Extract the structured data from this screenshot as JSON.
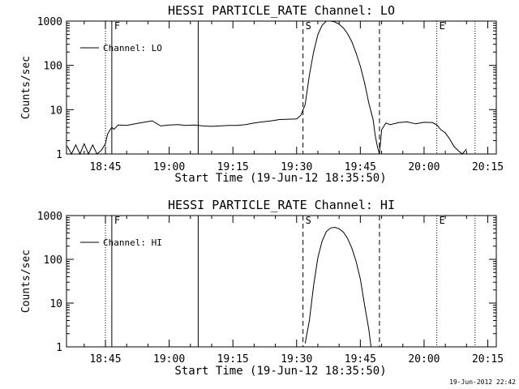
{
  "chart_data": [
    {
      "type": "line",
      "title": "HESSI PARTICLE_RATE Channel: LO",
      "xlabel": "Start Time (19-Jun-12 18:35:50)",
      "ylabel": "Counts/sec",
      "yscale": "log",
      "ylim": [
        1,
        1000
      ],
      "xlim": [
        "18:35:50",
        "20:17:00"
      ],
      "grid": false,
      "legend": "top-left",
      "x_ticks": [
        "18:45",
        "19:00",
        "19:15",
        "19:30",
        "19:45",
        "20:00",
        "20:15"
      ],
      "y_ticks": [
        "1",
        "10",
        "100",
        "1000"
      ],
      "markers": [
        {
          "time": "18:45:00",
          "style": "dotted",
          "label": ""
        },
        {
          "time": "18:46:30",
          "style": "solid",
          "label": "F"
        },
        {
          "time": "19:06:50",
          "style": "solid",
          "label": ""
        },
        {
          "time": "19:31:30",
          "style": "dashed",
          "label": "S"
        },
        {
          "time": "19:49:30",
          "style": "dashed",
          "label": ""
        },
        {
          "time": "20:03:00",
          "style": "dotted",
          "label": "E"
        },
        {
          "time": "20:12:00",
          "style": "dotted",
          "label": ""
        }
      ],
      "series": [
        {
          "name": "Channel: LO",
          "x": [
            "18:36:00",
            "18:37:00",
            "18:38:00",
            "18:39:00",
            "18:40:00",
            "18:41:00",
            "18:42:00",
            "18:43:00",
            "18:44:00",
            "18:45:00",
            "18:45:30",
            "18:46:00",
            "18:46:30",
            "18:47:00",
            "18:48:00",
            "18:50:00",
            "18:52:00",
            "18:54:00",
            "18:56:00",
            "18:58:00",
            "19:00:00",
            "19:02:00",
            "19:04:00",
            "19:06:00",
            "19:08:00",
            "19:10:00",
            "19:12:00",
            "19:14:00",
            "19:16:00",
            "19:18:00",
            "19:20:00",
            "19:22:00",
            "19:24:00",
            "19:26:00",
            "19:28:00",
            "19:30:00",
            "19:31:00",
            "19:32:00",
            "19:33:00",
            "19:34:00",
            "19:35:00",
            "19:36:00",
            "19:37:00",
            "19:38:00",
            "19:39:00",
            "19:40:00",
            "19:41:00",
            "19:42:00",
            "19:43:00",
            "19:44:00",
            "19:45:00",
            "19:46:00",
            "19:47:00",
            "19:48:00",
            "19:48:30",
            "19:49:00",
            "19:49:30",
            "19:50:00",
            "19:51:00",
            "19:52:00",
            "19:54:00",
            "19:56:00",
            "19:58:00",
            "20:00:00",
            "20:02:00",
            "20:03:00",
            "20:04:00",
            "20:05:00",
            "20:06:00",
            "20:07:00",
            "20:08:00",
            "20:09:00",
            "20:10:00"
          ],
          "y": [
            1.5,
            1,
            1.6,
            1,
            1.7,
            1,
            1.6,
            1,
            1.2,
            1.7,
            2.8,
            3.4,
            4,
            3.6,
            4.5,
            4.4,
            4.8,
            5.2,
            5.6,
            4.3,
            4.5,
            4.6,
            4.4,
            4.5,
            4.3,
            4.2,
            4.3,
            4.4,
            4.4,
            4.6,
            5,
            5.3,
            5.6,
            6,
            6.1,
            6.2,
            7.5,
            13,
            60,
            200,
            500,
            800,
            1000,
            1000,
            960,
            850,
            700,
            520,
            340,
            190,
            95,
            40,
            14,
            6,
            2.6,
            1.5,
            1,
            3.5,
            5,
            4.6,
            5.1,
            5.3,
            4.8,
            5.2,
            5.1,
            4.5,
            3.5,
            3,
            2.2,
            1.5,
            1.2,
            1,
            1.3
          ]
        }
      ]
    },
    {
      "type": "line",
      "title": "HESSI PARTICLE_RATE Channel: HI",
      "xlabel": "Start Time (19-Jun-12 18:35:50)",
      "ylabel": "Counts/sec",
      "yscale": "log",
      "ylim": [
        1,
        1000
      ],
      "xlim": [
        "18:35:50",
        "20:17:00"
      ],
      "grid": false,
      "legend": "top-left",
      "x_ticks": [
        "18:45",
        "19:00",
        "19:15",
        "19:30",
        "19:45",
        "20:00",
        "20:15"
      ],
      "y_ticks": [
        "1",
        "10",
        "100",
        "1000"
      ],
      "markers": [
        {
          "time": "18:45:00",
          "style": "dotted",
          "label": ""
        },
        {
          "time": "18:46:30",
          "style": "solid",
          "label": "F"
        },
        {
          "time": "19:06:50",
          "style": "solid",
          "label": ""
        },
        {
          "time": "19:31:30",
          "style": "dashed",
          "label": "S"
        },
        {
          "time": "19:49:30",
          "style": "dashed",
          "label": ""
        },
        {
          "time": "20:03:00",
          "style": "dotted",
          "label": "E"
        },
        {
          "time": "20:12:00",
          "style": "dotted",
          "label": ""
        }
      ],
      "series": [
        {
          "name": "Channel: HI",
          "x": [
            "19:32:00",
            "19:33:00",
            "19:34:00",
            "19:35:00",
            "19:36:00",
            "19:37:00",
            "19:38:00",
            "19:39:00",
            "19:40:00",
            "19:41:00",
            "19:42:00",
            "19:43:00",
            "19:44:00",
            "19:45:00",
            "19:46:00",
            "19:47:00",
            "19:47:30"
          ],
          "y": [
            1.2,
            4,
            25,
            110,
            260,
            430,
            520,
            540,
            500,
            420,
            300,
            180,
            90,
            35,
            9,
            2.5,
            1
          ]
        }
      ]
    }
  ],
  "footer": {
    "timestamp": "19-Jun-2012 22:42"
  }
}
